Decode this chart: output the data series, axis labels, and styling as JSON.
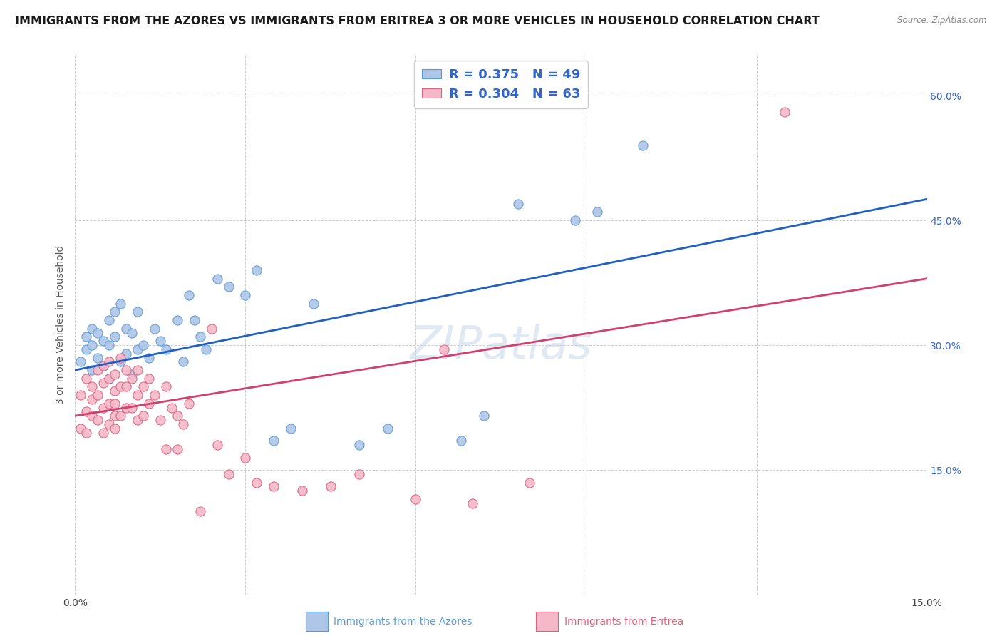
{
  "title": "IMMIGRANTS FROM THE AZORES VS IMMIGRANTS FROM ERITREA 3 OR MORE VEHICLES IN HOUSEHOLD CORRELATION CHART",
  "source": "Source: ZipAtlas.com",
  "ylabel": "3 or more Vehicles in Household",
  "x_min": 0.0,
  "x_max": 0.15,
  "y_min": 0.0,
  "y_max": 0.65,
  "y_tick_labels_right": [
    "15.0%",
    "30.0%",
    "45.0%",
    "60.0%"
  ],
  "y_tick_vals_right": [
    0.15,
    0.3,
    0.45,
    0.6
  ],
  "azores_fill_color": "#aec6e8",
  "eritrea_fill_color": "#f5b8c8",
  "azores_edge_color": "#5b9bd5",
  "eritrea_edge_color": "#e06080",
  "azores_line_color": "#2060c0",
  "eritrea_line_color": "#d04070",
  "legend_text_color": "#3366cc",
  "R_azores": 0.375,
  "N_azores": 49,
  "R_eritrea": 0.304,
  "N_eritrea": 63,
  "az_intercept": 0.27,
  "az_slope": 1.37,
  "er_intercept": 0.215,
  "er_slope": 1.1,
  "azores_x": [
    0.001,
    0.002,
    0.002,
    0.003,
    0.003,
    0.003,
    0.004,
    0.004,
    0.005,
    0.005,
    0.006,
    0.006,
    0.006,
    0.007,
    0.007,
    0.008,
    0.008,
    0.009,
    0.009,
    0.01,
    0.01,
    0.011,
    0.011,
    0.012,
    0.013,
    0.014,
    0.015,
    0.016,
    0.018,
    0.019,
    0.02,
    0.021,
    0.022,
    0.023,
    0.025,
    0.027,
    0.03,
    0.032,
    0.035,
    0.038,
    0.042,
    0.05,
    0.055,
    0.068,
    0.072,
    0.078,
    0.088,
    0.092,
    0.1
  ],
  "azores_y": [
    0.28,
    0.295,
    0.31,
    0.27,
    0.3,
    0.32,
    0.285,
    0.315,
    0.275,
    0.305,
    0.26,
    0.3,
    0.33,
    0.34,
    0.31,
    0.28,
    0.35,
    0.29,
    0.32,
    0.265,
    0.315,
    0.295,
    0.34,
    0.3,
    0.285,
    0.32,
    0.305,
    0.295,
    0.33,
    0.28,
    0.36,
    0.33,
    0.31,
    0.295,
    0.38,
    0.37,
    0.36,
    0.39,
    0.185,
    0.2,
    0.35,
    0.18,
    0.2,
    0.185,
    0.215,
    0.47,
    0.45,
    0.46,
    0.54
  ],
  "eritrea_x": [
    0.001,
    0.001,
    0.002,
    0.002,
    0.002,
    0.003,
    0.003,
    0.003,
    0.004,
    0.004,
    0.004,
    0.005,
    0.005,
    0.005,
    0.005,
    0.006,
    0.006,
    0.006,
    0.006,
    0.007,
    0.007,
    0.007,
    0.007,
    0.007,
    0.008,
    0.008,
    0.008,
    0.009,
    0.009,
    0.009,
    0.01,
    0.01,
    0.011,
    0.011,
    0.011,
    0.012,
    0.012,
    0.013,
    0.013,
    0.014,
    0.015,
    0.016,
    0.016,
    0.017,
    0.018,
    0.018,
    0.019,
    0.02,
    0.022,
    0.024,
    0.025,
    0.027,
    0.03,
    0.032,
    0.035,
    0.04,
    0.045,
    0.05,
    0.06,
    0.065,
    0.07,
    0.08,
    0.125
  ],
  "eritrea_y": [
    0.24,
    0.2,
    0.22,
    0.26,
    0.195,
    0.235,
    0.215,
    0.25,
    0.21,
    0.24,
    0.27,
    0.195,
    0.225,
    0.255,
    0.275,
    0.205,
    0.23,
    0.26,
    0.28,
    0.2,
    0.215,
    0.245,
    0.265,
    0.23,
    0.215,
    0.25,
    0.285,
    0.225,
    0.25,
    0.27,
    0.225,
    0.26,
    0.21,
    0.24,
    0.27,
    0.215,
    0.25,
    0.23,
    0.26,
    0.24,
    0.21,
    0.25,
    0.175,
    0.225,
    0.215,
    0.175,
    0.205,
    0.23,
    0.1,
    0.32,
    0.18,
    0.145,
    0.165,
    0.135,
    0.13,
    0.125,
    0.13,
    0.145,
    0.115,
    0.295,
    0.11,
    0.135,
    0.58
  ],
  "background_color": "#ffffff",
  "grid_color": "#cccccc",
  "title_fontsize": 11.5,
  "axis_label_fontsize": 10,
  "tick_fontsize": 10,
  "marker_size": 90
}
